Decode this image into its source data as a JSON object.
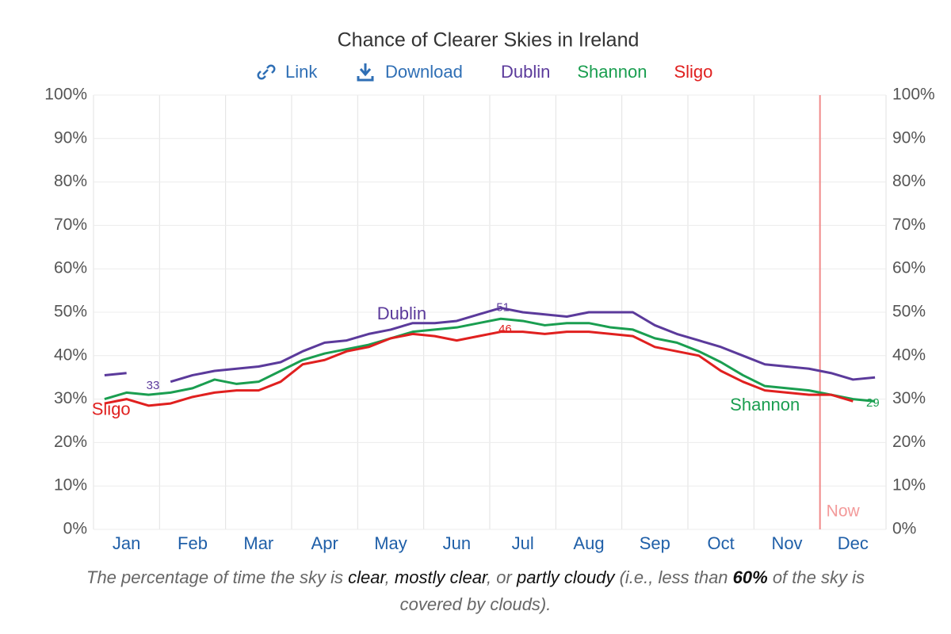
{
  "chart_data": {
    "type": "line",
    "title": "Chance of Clearer Skies in Ireland",
    "toolbar": [
      "Link",
      "Download"
    ],
    "categories": [
      null,
      "Jan",
      null,
      null,
      "Feb",
      null,
      null,
      "Mar",
      null,
      null,
      "Apr",
      null,
      null,
      "May",
      null,
      null,
      "Jun",
      null,
      null,
      "Jul",
      null,
      null,
      "Aug",
      null,
      null,
      "Sep",
      null,
      null,
      "Oct",
      null,
      null,
      "Nov",
      null,
      null,
      "Dec",
      null
    ],
    "series": [
      {
        "name": "Dublin",
        "color": "#5b3a9b",
        "marked_values": [
          33,
          51
        ],
        "values": [
          35.5,
          36,
          null,
          34,
          35.5,
          36.5,
          37,
          37.5,
          38.5,
          41,
          43,
          43.5,
          45,
          46,
          47.5,
          47.5,
          48,
          49.5,
          51,
          50,
          49.5,
          49,
          50,
          50,
          50,
          47,
          45,
          43.5,
          42,
          40,
          38,
          37.5,
          37,
          36,
          34.5,
          35
        ]
      },
      {
        "name": "Shannon",
        "color": "#1a9e50",
        "marked_values": [
          29
        ],
        "values": [
          30,
          31.5,
          31,
          31.5,
          32.5,
          34.5,
          33.5,
          34,
          36.5,
          39,
          40.5,
          41.5,
          42.5,
          44,
          45.5,
          46,
          46.5,
          47.5,
          48.5,
          48,
          47,
          47.5,
          47.5,
          46.5,
          46,
          44,
          43,
          41,
          38.5,
          35.5,
          33,
          32.5,
          32,
          31,
          30,
          29.5
        ]
      },
      {
        "name": "Sligo",
        "color": "#e0201f",
        "marked_values": [
          46
        ],
        "values": [
          29,
          30,
          28.5,
          29,
          30.5,
          31.5,
          32,
          32,
          34,
          38,
          39,
          41,
          42,
          44,
          45,
          44.5,
          43.5,
          44.5,
          45.5,
          45.5,
          45,
          45.5,
          45.5,
          45,
          44.5,
          42,
          41,
          40,
          36.5,
          34,
          32,
          31.5,
          31,
          31,
          29.5,
          null
        ]
      }
    ],
    "ylim": [
      0,
      100
    ],
    "yticks": [
      {
        "value": 0,
        "label": "0%"
      },
      {
        "value": 10,
        "label": "10%"
      },
      {
        "value": 20,
        "label": "20%"
      },
      {
        "value": 30,
        "label": "30%"
      },
      {
        "value": 40,
        "label": "40%"
      },
      {
        "value": 50,
        "label": "50%"
      },
      {
        "value": 60,
        "label": "60%"
      },
      {
        "value": 70,
        "label": "70%"
      },
      {
        "value": 80,
        "label": "80%"
      },
      {
        "value": 90,
        "label": "90%"
      },
      {
        "value": 100,
        "label": "100%"
      }
    ],
    "grid": true,
    "now_label": "Now",
    "caption": [
      "The percentage of time the sky is ",
      "clear",
      ", ",
      "mostly clear",
      ", or ",
      "partly cloudy",
      " (i.e., less than ",
      "60%",
      " of the sky is covered by clouds)."
    ]
  }
}
